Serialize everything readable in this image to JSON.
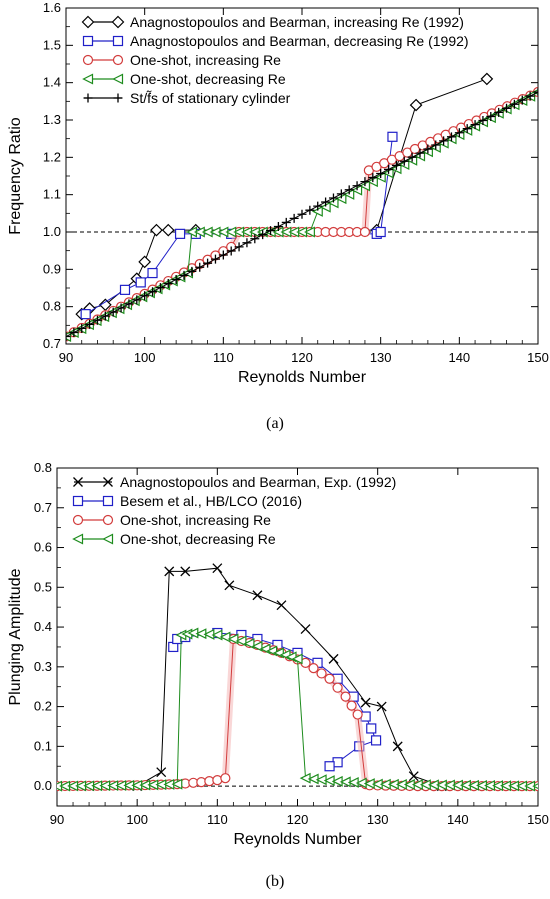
{
  "chart_data": [
    {
      "type": "line",
      "caption": "(a)",
      "xlabel": "Reynolds Number",
      "ylabel": "Frequency Ratio",
      "xlim": [
        90,
        150
      ],
      "ylim": [
        0.7,
        1.6
      ],
      "xticks": [
        90,
        100,
        110,
        120,
        130,
        140,
        150
      ],
      "yticks": [
        0.7,
        0.8,
        0.9,
        1.0,
        1.1,
        1.2,
        1.3,
        1.4,
        1.5,
        1.6
      ],
      "ytick_labels": [
        "0.7",
        "0.8",
        "0.9",
        "1.0",
        "1.1",
        "1.2",
        "1.3",
        "1.4",
        "1.5",
        "1.6"
      ],
      "reference_line": {
        "y": 1.0,
        "style": "dashed"
      },
      "legend_position": "top-left",
      "series": [
        {
          "name": "Anagnostopoulos and Bearman, increasing Re (1992)",
          "color": "#000000",
          "marker": "diamond",
          "x": [
            92,
            93,
            95,
            99,
            100,
            101.5,
            103,
            106.5,
            129.5,
            134.5,
            143.5
          ],
          "y": [
            0.78,
            0.795,
            0.805,
            0.875,
            0.92,
            1.005,
            1.005,
            1.005,
            1.005,
            1.34,
            1.41
          ]
        },
        {
          "name": "Anagnostopoulos and Bearman, decreasing Re (1992)",
          "color": "#2020c8",
          "marker": "square",
          "x": [
            92.5,
            97.5,
            99.5,
            101,
            104.5,
            106.5,
            111,
            129.5,
            130,
            131.5
          ],
          "y": [
            0.78,
            0.845,
            0.865,
            0.89,
            0.995,
            0.995,
            0.995,
            0.995,
            1.0,
            1.255
          ]
        },
        {
          "name": "One-shot, increasing Re",
          "color": "#d23c3c",
          "marker": "circle",
          "x": [
            90,
            111,
            112,
            128,
            128.5,
            150
          ],
          "y": [
            0.72,
            0.96,
            1.0,
            1.0,
            1.165,
            1.375
          ]
        },
        {
          "name": "One-shot, decreasing Re",
          "color": "#1e8c1e",
          "marker": "triangle-left",
          "x": [
            90,
            105.5,
            106,
            121,
            122,
            150
          ],
          "y": [
            0.72,
            0.89,
            1.0,
            1.0,
            1.055,
            1.375
          ]
        },
        {
          "name": "St/f̃s of stationary cylinder",
          "color": "#000000",
          "marker": "plus",
          "x": [
            90,
            150
          ],
          "y": [
            0.72,
            1.375
          ]
        }
      ]
    },
    {
      "type": "line",
      "caption": "(b)",
      "xlabel": "Reynolds Number",
      "ylabel": "Plunging Amplitude",
      "xlim": [
        90,
        150
      ],
      "ylim": [
        -0.05,
        0.8
      ],
      "xticks": [
        90,
        100,
        110,
        120,
        130,
        140,
        150
      ],
      "yticks": [
        0.0,
        0.1,
        0.2,
        0.3,
        0.4,
        0.5,
        0.6,
        0.7,
        0.8
      ],
      "ytick_labels": [
        "0.0",
        "0.1",
        "0.2",
        "0.3",
        "0.4",
        "0.5",
        "0.6",
        "0.7",
        "0.8"
      ],
      "reference_line": {
        "y": 0.0,
        "style": "dashed"
      },
      "legend_position": "top-left",
      "series": [
        {
          "name": "Anagnostopoulos and Bearman, Exp. (1992)",
          "color": "#000000",
          "marker": "x",
          "x": [
            90,
            94,
            100,
            103,
            104,
            106,
            110,
            111.5,
            115,
            118,
            121,
            124.5,
            128.5,
            130.5,
            132.5,
            134.5,
            138,
            142.5
          ],
          "y": [
            0.0,
            0.0,
            0.0,
            0.035,
            0.54,
            0.54,
            0.548,
            0.505,
            0.48,
            0.455,
            0.395,
            0.32,
            0.21,
            0.2,
            0.1,
            0.025,
            0.0,
            0.0
          ]
        },
        {
          "name": "Besem et al., HB/LCO (2016)",
          "color": "#2020c8",
          "marker": "square",
          "x": [
            104.5,
            105,
            106,
            110,
            113,
            115,
            117.5,
            120,
            122.5,
            125,
            127,
            128.5,
            129.2,
            129.8,
            127.7,
            125,
            124
          ],
          "y": [
            0.35,
            0.37,
            0.375,
            0.385,
            0.38,
            0.37,
            0.355,
            0.335,
            0.31,
            0.27,
            0.225,
            0.175,
            0.145,
            0.115,
            0.1,
            0.06,
            0.05
          ]
        },
        {
          "name": "One-shot, increasing Re",
          "color": "#d23c3c",
          "marker": "circle",
          "x": [
            90,
            100,
            105,
            108,
            110,
            111,
            112,
            115,
            118,
            121,
            124,
            126,
            127.5,
            128.5,
            129,
            135,
            150
          ],
          "y": [
            0.0,
            0.002,
            0.005,
            0.01,
            0.015,
            0.02,
            0.37,
            0.355,
            0.335,
            0.31,
            0.27,
            0.225,
            0.18,
            0.005,
            0.002,
            0.0,
            0.0
          ]
        },
        {
          "name": "One-shot, decreasing Re",
          "color": "#1e8c1e",
          "marker": "triangle-left",
          "x": [
            90,
            100,
            105,
            105.5,
            107,
            110,
            113,
            116,
            118.5,
            120,
            121,
            125,
            130,
            150
          ],
          "y": [
            0.0,
            0.002,
            0.005,
            0.38,
            0.385,
            0.38,
            0.365,
            0.345,
            0.33,
            0.32,
            0.02,
            0.012,
            0.005,
            0.0
          ]
        }
      ]
    }
  ]
}
